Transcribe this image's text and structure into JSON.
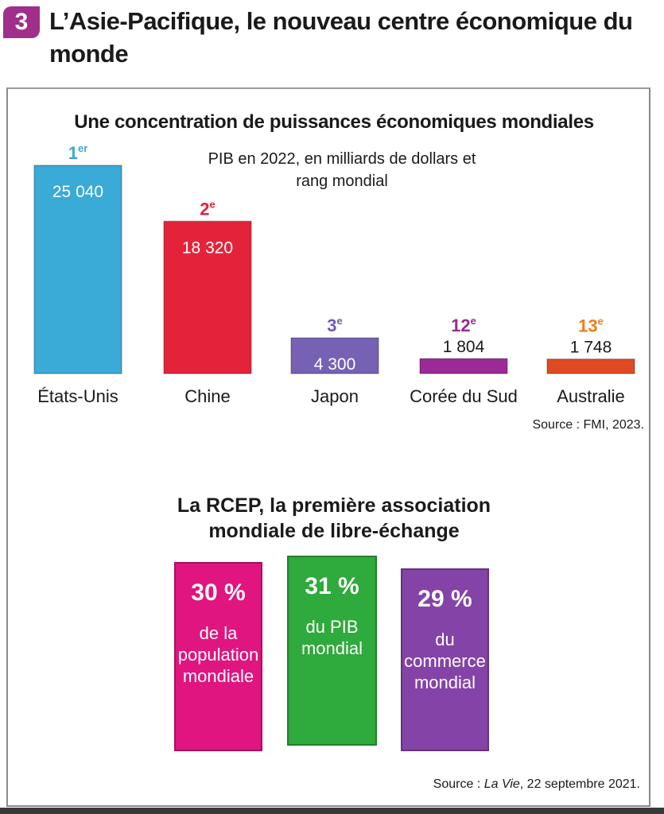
{
  "header": {
    "number": "3",
    "title": "L’Asie-Pacifique, le nouveau centre économique du monde"
  },
  "chart_data": {
    "type": "bar",
    "title": "Une concentration de puissances économiques mondiales",
    "subtitle": "PIB en 2022, en milliards de dollars et rang mondial",
    "categories": [
      "États-Unis",
      "Chine",
      "Japon",
      "Corée du Sud",
      "Australie"
    ],
    "values": [
      25040,
      18320,
      4300,
      1804,
      1748
    ],
    "value_labels": [
      "25 040",
      "18 320",
      "4 300",
      "1 804",
      "1 748"
    ],
    "ranks": [
      {
        "num": "1",
        "sup": "er"
      },
      {
        "num": "2",
        "sup": "e"
      },
      {
        "num": "3",
        "sup": "e"
      },
      {
        "num": "12",
        "sup": "e"
      },
      {
        "num": "13",
        "sup": "e"
      }
    ],
    "colors": [
      "#3aaad6",
      "#e4233a",
      "#7661b5",
      "#9a2a96",
      "#e04a22"
    ],
    "rank_colors": [
      "#3aaad6",
      "#e4233a",
      "#6e5ab3",
      "#9a2a96",
      "#ef7d1e"
    ],
    "label_inside": [
      true,
      true,
      true,
      false,
      false
    ],
    "source": "Source : FMI, 2023."
  },
  "rcep": {
    "title_line1": "La RCEP, la première association",
    "title_line2": "mondiale de libre-échange",
    "cards": [
      {
        "percent": "30 %",
        "line1": "de la",
        "line2": "population",
        "line3": "mondiale",
        "color": "#e0157f"
      },
      {
        "percent": "31 %",
        "line1": "du PIB",
        "line2": "mondial",
        "line3": "",
        "color": "#2faa3c"
      },
      {
        "percent": "29 %",
        "line1": "du",
        "line2": "commerce",
        "line3": "mondial",
        "color": "#8443a6"
      }
    ],
    "source_prefix": "Source : ",
    "source_title": "La Vie",
    "source_suffix": ", 22 septembre 2021."
  }
}
